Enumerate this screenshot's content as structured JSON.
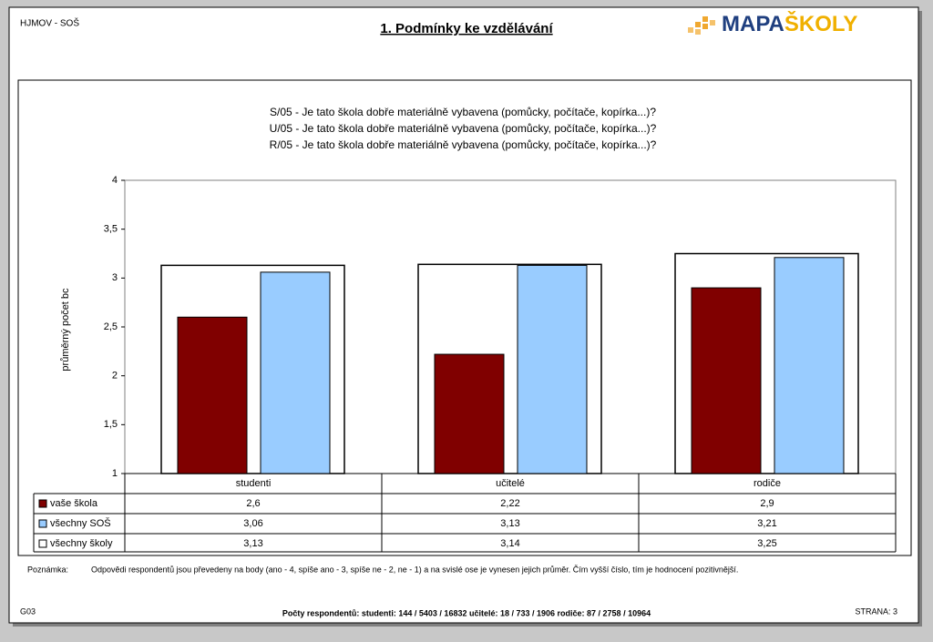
{
  "header": {
    "left": "HJMOV - SOŠ",
    "title": "1. Podmínky ke vzdělávání",
    "logo_left": "MAPA",
    "logo_right": "ŠKOLY"
  },
  "chart_data": {
    "type": "bar",
    "title_lines": [
      "S/05 - Je tato škola dobře materiálně vybavena (pomůcky, počítače, kopírka...)?",
      "U/05 - Je tato škola dobře materiálně vybavena (pomůcky, počítače, kopírka...)?",
      "R/05 - Je tato škola dobře materiálně vybavena (pomůcky, počítače, kopírka...)?"
    ],
    "y_label": "průměrný počet bc",
    "categories": [
      "studenti",
      "učitelé",
      "rodiče"
    ],
    "series": [
      {
        "name": "vaše škola",
        "color": "#800000",
        "values": [
          2.6,
          2.22,
          2.9
        ],
        "value_labels": [
          "2,6",
          "2,22",
          "2,9"
        ]
      },
      {
        "name": "všechny SOŠ",
        "color": "#99ccff",
        "values": [
          3.06,
          3.13,
          3.21
        ],
        "value_labels": [
          "3,06",
          "3,13",
          "3,21"
        ]
      },
      {
        "name": "všechny školy",
        "color": "#ffffff",
        "values": [
          3.13,
          3.14,
          3.25
        ],
        "value_labels": [
          "3,13",
          "3,14",
          "3,25"
        ]
      }
    ],
    "ylim": [
      1,
      4
    ],
    "yticks": [
      1,
      {
        "value": 1.5,
        "label": "1,5"
      },
      2,
      {
        "value": 2.5,
        "label": "2,5"
      },
      3,
      {
        "value": 3.5,
        "label": "3,5"
      },
      4
    ],
    "grid": false
  },
  "note": {
    "label": "Poznámka:",
    "text": "Odpovědi respondentů jsou převedeny na body (ano - 4, spíše ano - 3, spíše ne - 2, ne - 1) a na svislé ose je vynesen jejich průměr. Čím vyšší číslo, tím je hodnocení pozitivnější."
  },
  "footer": {
    "left": "G03",
    "center": "Počty respondentů:  studenti: 144 / 5403 / 16832  učitelé: 18 / 733 / 1906  rodiče: 87 / 2758 / 10964",
    "right": "STRANA: 3"
  }
}
